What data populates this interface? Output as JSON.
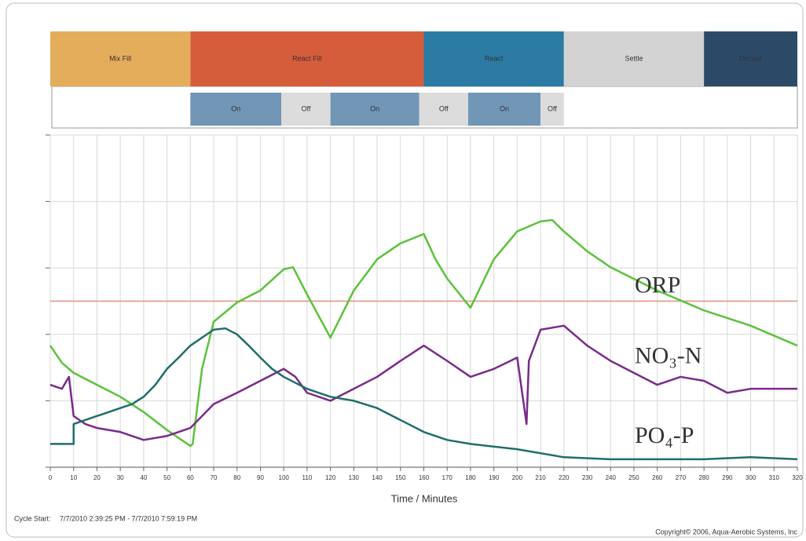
{
  "chart_data": {
    "type": "line",
    "xlabel": "Time / Minutes",
    "footer_left": "Cycle Start:",
    "cycle_range": "7/7/2010 2:39:25 PM - 7/7/2010 7:59:19 PM",
    "copyright": "Copyright© 2006, Aqua-Aerobic Systems, Inc",
    "xlim": [
      0,
      320
    ],
    "xticks": [
      0,
      10,
      20,
      30,
      40,
      50,
      60,
      70,
      80,
      90,
      100,
      110,
      120,
      130,
      140,
      150,
      160,
      170,
      180,
      190,
      200,
      210,
      220,
      230,
      240,
      250,
      260,
      270,
      280,
      290,
      300,
      310,
      320
    ],
    "ylim": [
      0,
      5
    ],
    "yticks": [
      0,
      1,
      2,
      3,
      4,
      5
    ],
    "grid": true,
    "phases": [
      {
        "label": "Mix Fill",
        "start": 0,
        "end": 60,
        "color": "#e4ad5c"
      },
      {
        "label": "React Fill",
        "start": 60,
        "end": 160,
        "color": "#d65d3b"
      },
      {
        "label": "React",
        "start": 160,
        "end": 220,
        "color": "#2b7ba4"
      },
      {
        "label": "Settle",
        "start": 220,
        "end": 280,
        "color": "#d3d3d3"
      },
      {
        "label": "Decant",
        "start": 280,
        "end": 320,
        "color": "#2c4a68"
      }
    ],
    "aeration": [
      {
        "label": "On",
        "start": 60,
        "end": 99,
        "color": "#7196b6"
      },
      {
        "label": "Off",
        "start": 99,
        "end": 120,
        "color": "#dcdcdc"
      },
      {
        "label": "On",
        "start": 120,
        "end": 158,
        "color": "#7196b6"
      },
      {
        "label": "Off",
        "start": 158,
        "end": 179,
        "color": "#dcdcdc"
      },
      {
        "label": "On",
        "start": 179,
        "end": 210,
        "color": "#7196b6"
      },
      {
        "label": "Off",
        "start": 210,
        "end": 220,
        "color": "#dcdcdc"
      }
    ],
    "setpoint": {
      "value": 2.5,
      "color": "#e0907c"
    },
    "label_color": "#b5483a",
    "series": [
      {
        "name": "ORP",
        "color": "#5cc23a",
        "x": [
          0,
          5,
          10,
          20,
          30,
          40,
          50,
          60,
          61,
          65,
          70,
          80,
          90,
          100,
          104,
          110,
          120,
          130,
          140,
          150,
          160,
          165,
          170,
          180,
          190,
          200,
          210,
          215,
          220,
          230,
          240,
          260,
          280,
          300,
          320
        ],
        "values": [
          1.83,
          1.57,
          1.42,
          1.24,
          1.06,
          0.83,
          0.56,
          0.32,
          0.35,
          1.48,
          2.19,
          2.48,
          2.66,
          2.98,
          3.01,
          2.6,
          1.95,
          2.66,
          3.13,
          3.37,
          3.51,
          3.13,
          2.84,
          2.4,
          3.13,
          3.55,
          3.7,
          3.72,
          3.55,
          3.25,
          3.01,
          2.66,
          2.36,
          2.13,
          1.83
        ]
      },
      {
        "name": "NO₃-N",
        "color": "#7a2a8a",
        "x": [
          0,
          5,
          8,
          10,
          15,
          20,
          30,
          40,
          50,
          60,
          65,
          70,
          80,
          90,
          100,
          105,
          110,
          120,
          130,
          140,
          150,
          160,
          170,
          180,
          190,
          200,
          204,
          205,
          210,
          220,
          230,
          240,
          250,
          260,
          270,
          280,
          290,
          300,
          320
        ],
        "values": [
          1.24,
          1.18,
          1.36,
          0.77,
          0.65,
          0.59,
          0.53,
          0.41,
          0.47,
          0.59,
          0.77,
          0.95,
          1.12,
          1.3,
          1.48,
          1.36,
          1.12,
          1.0,
          1.18,
          1.36,
          1.6,
          1.83,
          1.6,
          1.36,
          1.48,
          1.65,
          0.65,
          1.6,
          2.07,
          2.13,
          1.83,
          1.6,
          1.42,
          1.24,
          1.36,
          1.3,
          1.12,
          1.18,
          1.18
        ]
      },
      {
        "name": "PO₄-P",
        "color": "#1f6e6a",
        "x": [
          0,
          10,
          10,
          20,
          25,
          30,
          35,
          40,
          45,
          50,
          55,
          60,
          65,
          70,
          75,
          80,
          85,
          90,
          95,
          100,
          110,
          120,
          130,
          140,
          150,
          160,
          170,
          180,
          200,
          220,
          240,
          280,
          300,
          320
        ],
        "values": [
          0.35,
          0.35,
          0.65,
          0.77,
          0.83,
          0.89,
          0.95,
          1.06,
          1.24,
          1.48,
          1.65,
          1.83,
          1.95,
          2.07,
          2.09,
          2.0,
          1.83,
          1.65,
          1.48,
          1.36,
          1.18,
          1.06,
          1.0,
          0.89,
          0.71,
          0.53,
          0.41,
          0.35,
          0.27,
          0.15,
          0.12,
          0.12,
          0.15,
          0.12
        ]
      }
    ]
  }
}
